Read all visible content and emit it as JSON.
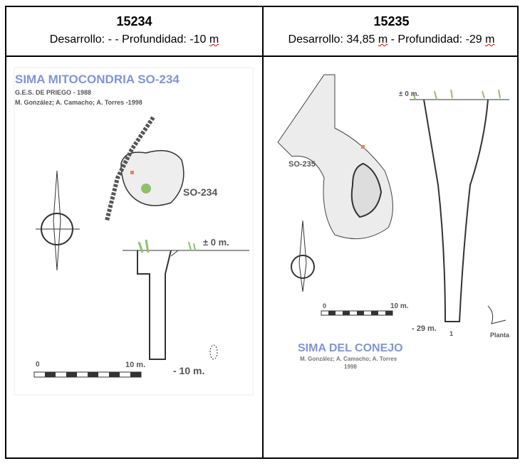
{
  "columns": [
    {
      "id": "15234",
      "desarrollo_label": "Desarrollo:",
      "desarrollo": "-",
      "sep": "-",
      "profundidad_label": "Profundidad:",
      "profundidad": "-10",
      "unit": "m",
      "drawing": {
        "title": "SIMA MITOCONDRIA SO-234",
        "group": "G.E.S. DE PRIEGO - 1988",
        "authors": "M. González; A. Camacho; A. Torres -1998",
        "label": "SO-234",
        "depth_top": "± 0 m.",
        "depth_bottom": "- 10 m.",
        "scale_start": "0",
        "scale_end": "10 m."
      }
    },
    {
      "id": "15235",
      "desarrollo_label": "Desarrollo:",
      "desarrollo": "34,85",
      "sep": "-",
      "profundidad_label": "Profundidad:",
      "profundidad": "-29",
      "unit": "m",
      "drawing": {
        "title": "SIMA DEL CONEJO",
        "authors": "M. González; A. Camacho; A. Torres",
        "year": "1998",
        "label": "SO-235",
        "depth_top": "± 0 m.",
        "depth_bottom": "- 29 m.",
        "scale_start": "0",
        "scale_end": "10 m.",
        "plan_label": "Planta",
        "section_mark": "1"
      }
    }
  ],
  "colors": {
    "title_blue": "#7f95d8",
    "vegetation": "#8fc16a",
    "marker": "#e0875a"
  }
}
